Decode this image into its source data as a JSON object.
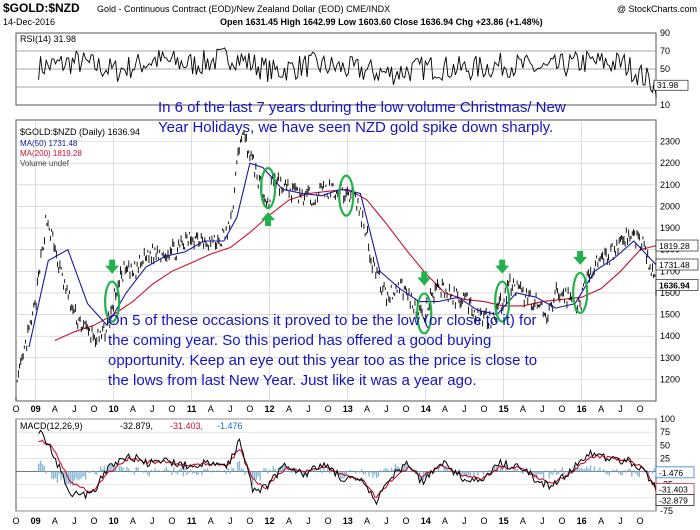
{
  "header": {
    "symbol": "$GOLD:$NZD",
    "description": "Gold - Continuous Contract (EOD)/New Zealand Dollar (EOD)  CME/INDX",
    "brand": "@ StockCharts.com",
    "date": "14-Dec-2016",
    "ohlc_text": "Open 1631.45  High 1642.99  Low 1603.60  Close 1636.94  Chg +23.86 (+1.48%)"
  },
  "colors": {
    "price": "#000000",
    "ma50": "#1a1aa0",
    "ma200": "#c8102e",
    "annotation_text": "#1515c0",
    "marker": "#22b14c",
    "rsi_line": "#000000",
    "macd_hist": "#88b8d8",
    "grid": "#c8c8c8",
    "price_label_bg": "#ffffff"
  },
  "chart_data": [
    {
      "type": "line",
      "panel": "RSI",
      "legend": "RSI(14) 31.98",
      "current_value": 31.98,
      "ylim": [
        10,
        90
      ],
      "yticks": [
        10,
        30,
        50,
        70,
        90
      ],
      "reference_lines": [
        30,
        50,
        70
      ],
      "xlim": [
        "2008-10-01",
        "2016-12-14"
      ],
      "x": [
        "2009-01",
        "2009-07",
        "2010-01",
        "2010-07",
        "2011-01",
        "2011-07",
        "2012-01",
        "2012-07",
        "2013-01",
        "2013-07",
        "2014-01",
        "2014-07",
        "2015-01",
        "2015-07",
        "2016-01",
        "2016-07",
        "2016-12"
      ],
      "y": [
        52,
        58,
        48,
        60,
        55,
        64,
        47,
        55,
        50,
        45,
        52,
        50,
        55,
        50,
        58,
        56,
        32
      ]
    },
    {
      "type": "line",
      "panel": "Price",
      "title": "$GOLD:$NZD (Daily) 1636.94",
      "ylim": [
        1100,
        2400
      ],
      "yticks": [
        1200,
        1300,
        1400,
        1500,
        1600,
        1700,
        1800,
        1900,
        2000,
        2100,
        2200,
        2300
      ],
      "xlim": [
        "2008-10-01",
        "2016-12-14"
      ],
      "x_ticks": [
        "O",
        "09",
        "A",
        "J",
        "O",
        "10",
        "A",
        "J",
        "O",
        "11",
        "A",
        "J",
        "O",
        "12",
        "A",
        "J",
        "O",
        "13",
        "A",
        "J",
        "O",
        "14",
        "A",
        "J",
        "O",
        "15",
        "A",
        "J",
        "O",
        "16",
        "A",
        "J",
        "O"
      ],
      "grid": true,
      "series": [
        {
          "name": "$GOLD:$NZD (Daily)",
          "x": [
            "2008-10-01",
            "2008-11-15",
            "2009-01-01",
            "2009-02-20",
            "2009-03-15",
            "2009-05-01",
            "2009-07-01",
            "2009-09-01",
            "2009-11-01",
            "2009-12-20",
            "2010-01-10",
            "2010-02-15",
            "2010-04-01",
            "2010-06-15",
            "2010-09-01",
            "2010-11-01",
            "2011-01-01",
            "2011-03-01",
            "2011-05-01",
            "2011-07-01",
            "2011-08-20",
            "2011-09-20",
            "2011-11-01",
            "2011-12-15",
            "2012-01-01",
            "2012-01-10",
            "2012-03-01",
            "2012-05-01",
            "2012-07-01",
            "2012-09-01",
            "2012-11-01",
            "2012-12-25",
            "2013-02-01",
            "2013-04-01",
            "2013-04-20",
            "2013-06-01",
            "2013-07-01",
            "2013-09-01",
            "2013-11-01",
            "2013-12-25",
            "2014-01-15",
            "2014-03-15",
            "2014-05-01",
            "2014-07-01",
            "2014-09-01",
            "2014-11-01",
            "2014-12-25",
            "2015-02-01",
            "2015-04-01",
            "2015-06-01",
            "2015-07-25",
            "2015-09-01",
            "2015-11-01",
            "2015-12-25",
            "2016-02-01",
            "2016-03-15",
            "2016-05-01",
            "2016-07-15",
            "2016-09-01",
            "2016-10-15",
            "2016-11-15",
            "2016-12-14"
          ],
          "values": [
            1150,
            1350,
            1550,
            1950,
            1870,
            1680,
            1500,
            1420,
            1380,
            1500,
            1600,
            1700,
            1690,
            1780,
            1790,
            1800,
            1860,
            1850,
            1830,
            1900,
            2350,
            2280,
            2150,
            2020,
            2000,
            2150,
            2090,
            2060,
            2040,
            2070,
            2080,
            2060,
            2050,
            1880,
            1760,
            1650,
            1580,
            1640,
            1560,
            1480,
            1560,
            1630,
            1580,
            1580,
            1500,
            1480,
            1560,
            1640,
            1590,
            1560,
            1470,
            1600,
            1580,
            1540,
            1700,
            1730,
            1760,
            1860,
            1860,
            1830,
            1720,
            1637
          ]
        },
        {
          "name": "MA(50) 1731.48",
          "x": [
            "2008-12-01",
            "2009-03-01",
            "2009-06-01",
            "2009-09-01",
            "2009-12-01",
            "2010-03-01",
            "2010-06-01",
            "2010-09-01",
            "2010-12-01",
            "2011-03-01",
            "2011-06-01",
            "2011-08-01",
            "2011-10-01",
            "2011-12-01",
            "2012-03-01",
            "2012-06-01",
            "2012-09-01",
            "2012-12-01",
            "2013-03-01",
            "2013-06-01",
            "2013-09-01",
            "2013-12-01",
            "2014-03-01",
            "2014-06-01",
            "2014-09-01",
            "2014-12-01",
            "2015-03-01",
            "2015-06-01",
            "2015-09-01",
            "2015-12-01",
            "2016-03-01",
            "2016-06-01",
            "2016-09-01",
            "2016-12-14"
          ],
          "values": [
            1350,
            1750,
            1800,
            1550,
            1450,
            1600,
            1720,
            1770,
            1790,
            1840,
            1840,
            1950,
            2200,
            2180,
            2080,
            2060,
            2050,
            2080,
            2060,
            1700,
            1620,
            1560,
            1560,
            1580,
            1520,
            1500,
            1600,
            1580,
            1530,
            1550,
            1700,
            1760,
            1840,
            1731
          ]
        },
        {
          "name": "MA(200) 1819.28",
          "x": [
            "2009-04-01",
            "2009-07-01",
            "2009-10-01",
            "2010-01-01",
            "2010-04-01",
            "2010-07-01",
            "2010-10-01",
            "2011-01-01",
            "2011-04-01",
            "2011-07-01",
            "2011-10-01",
            "2012-01-01",
            "2012-04-01",
            "2012-07-01",
            "2012-10-01",
            "2013-01-01",
            "2013-04-01",
            "2013-07-01",
            "2013-10-01",
            "2014-01-01",
            "2014-04-01",
            "2014-07-01",
            "2014-10-01",
            "2015-01-01",
            "2015-04-01",
            "2015-07-01",
            "2015-10-01",
            "2016-01-01",
            "2016-04-01",
            "2016-07-01",
            "2016-10-01",
            "2016-12-14"
          ],
          "values": [
            1380,
            1420,
            1450,
            1500,
            1560,
            1640,
            1700,
            1740,
            1780,
            1810,
            1880,
            1960,
            2030,
            2060,
            2070,
            2080,
            2030,
            1920,
            1800,
            1690,
            1600,
            1570,
            1560,
            1540,
            1540,
            1560,
            1570,
            1580,
            1620,
            1700,
            1800,
            1819
          ]
        }
      ],
      "price_labels": [
        "1819.28",
        "1731.48",
        "1636.94"
      ],
      "legend": [
        "$GOLD:$NZD (Daily) 1636.94",
        "MA(50) 1731.48",
        "MA(200) 1819.28",
        "Volume undef"
      ],
      "markers": [
        {
          "date": "2009-12-25",
          "value": 1560,
          "arrow": "down"
        },
        {
          "date": "2011-12-25",
          "value": 2085,
          "arrow": "up"
        },
        {
          "date": "2012-12-25",
          "value": 2050,
          "arrow": "none"
        },
        {
          "date": "2013-12-25",
          "value": 1505,
          "arrow": "down"
        },
        {
          "date": "2014-12-25",
          "value": 1560,
          "arrow": "down"
        },
        {
          "date": "2015-12-25",
          "value": 1600,
          "arrow": "down"
        }
      ],
      "annotations": [
        "In 6 of the last 7 years during the low volume Christmas/ New Year Holidays, we have seen NZD gold spike down sharply.",
        "On 5 of these occasions it proved to be the low (or close to it) for the coming year. So this period has offered a good buying opportunity. Keep an eye out this year too as the price is close to the lows from last New Year. Just like it was a year ago."
      ]
    },
    {
      "type": "line",
      "panel": "MACD",
      "legend": {
        "name": "MACD(12,26,9)",
        "macd": "-32.879,",
        "signal": "-31.403,",
        "hist": "-1.476"
      },
      "ylim": [
        -75,
        100
      ],
      "yticks": [
        -75,
        -50,
        -25,
        0,
        25,
        50,
        75,
        100
      ],
      "xlim": [
        "2008-10-01",
        "2016-12-14"
      ],
      "price_labels": [
        "-1.476",
        "-31.403",
        "-32.879"
      ],
      "series": [
        {
          "name": "MACD",
          "x": [
            "2009-01",
            "2009-03",
            "2009-06",
            "2009-09",
            "2009-12",
            "2010-03",
            "2010-06",
            "2010-09",
            "2010-12",
            "2011-03",
            "2011-06",
            "2011-08",
            "2011-10",
            "2011-12",
            "2012-03",
            "2012-06",
            "2012-09",
            "2012-12",
            "2013-03",
            "2013-05",
            "2013-07",
            "2013-10",
            "2013-12",
            "2014-03",
            "2014-06",
            "2014-09",
            "2014-12",
            "2015-03",
            "2015-06",
            "2015-08",
            "2015-11",
            "2016-02",
            "2016-05",
            "2016-08",
            "2016-10",
            "2016-12"
          ],
          "values": [
            80,
            40,
            -40,
            -45,
            10,
            30,
            15,
            20,
            10,
            15,
            10,
            60,
            -35,
            -30,
            15,
            -5,
            15,
            -15,
            -20,
            -60,
            -10,
            15,
            -20,
            20,
            -10,
            -20,
            15,
            10,
            -20,
            -30,
            5,
            35,
            25,
            20,
            5,
            -33
          ]
        },
        {
          "name": "Signal",
          "x": [
            "2009-01",
            "2009-03",
            "2009-06",
            "2009-09",
            "2009-12",
            "2010-03",
            "2010-06",
            "2010-09",
            "2010-12",
            "2011-03",
            "2011-06",
            "2011-08",
            "2011-10",
            "2011-12",
            "2012-03",
            "2012-06",
            "2012-09",
            "2012-12",
            "2013-03",
            "2013-05",
            "2013-07",
            "2013-10",
            "2013-12",
            "2014-03",
            "2014-06",
            "2014-09",
            "2014-12",
            "2015-03",
            "2015-06",
            "2015-08",
            "2015-11",
            "2016-02",
            "2016-05",
            "2016-08",
            "2016-10",
            "2016-12"
          ],
          "values": [
            60,
            50,
            -20,
            -40,
            0,
            25,
            18,
            18,
            12,
            14,
            10,
            45,
            -15,
            -30,
            5,
            0,
            10,
            -8,
            -15,
            -50,
            -20,
            8,
            -10,
            12,
            -5,
            -15,
            8,
            8,
            -12,
            -25,
            0,
            28,
            26,
            20,
            8,
            -31
          ]
        }
      ]
    }
  ]
}
